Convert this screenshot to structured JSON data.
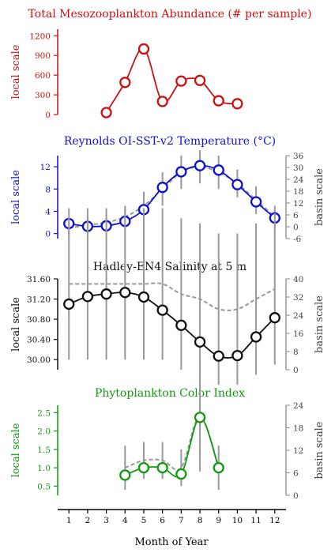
{
  "chart_data": [
    {
      "id": "zoo",
      "type": "line",
      "title": "Total Mesozooplankton Abundance (# per sample)",
      "color": "#cc1111",
      "ylabel": "local scale",
      "right_label": "",
      "ylim": [
        0,
        1300
      ],
      "yticks": [
        0,
        300,
        600,
        900,
        1200
      ],
      "ytick_labels": [
        "0",
        "300",
        "600",
        "900",
        "1200"
      ],
      "right_ylim": null,
      "right_ticks": [],
      "right_tick_labels": [],
      "series": [
        {
          "name": "",
          "x": [
            3,
            4,
            5,
            6,
            7,
            8,
            9,
            10
          ],
          "y": [
            30,
            490,
            1000,
            200,
            510,
            520,
            210,
            165
          ]
        }
      ],
      "basin": null
    },
    {
      "id": "sst",
      "type": "line",
      "title": "Reynolds OI-SST-v2 Temperature (°C)",
      "color": "#1111cc",
      "ylabel": "local scale",
      "right_label": "basin scale",
      "ylim": [
        -0.9,
        14
      ],
      "yticks": [
        0,
        4,
        8,
        12
      ],
      "ytick_labels": [
        "0",
        "4",
        "8",
        "12"
      ],
      "right_ylim": [
        -6,
        36
      ],
      "right_ticks": [
        -6,
        0,
        6,
        12,
        18,
        24,
        30,
        36
      ],
      "right_tick_labels": [
        "-6",
        "0",
        "6",
        "12",
        "18",
        "24",
        "30",
        "36"
      ],
      "series": [
        {
          "name": "",
          "x": [
            1,
            2,
            3,
            4,
            5,
            6,
            7,
            8,
            9,
            10,
            11,
            12
          ],
          "y": [
            1.8,
            1.3,
            1.4,
            2.2,
            4.3,
            8.3,
            11.1,
            12.2,
            11.4,
            8.8,
            5.7,
            2.8
          ]
        }
      ],
      "basin": {
        "x": [
          1,
          2,
          3,
          4,
          5,
          6,
          7,
          8,
          9,
          10,
          11,
          12
        ],
        "y": [
          1,
          1.5,
          2,
          3,
          5,
          8,
          11,
          12,
          11,
          9,
          6,
          3
        ],
        "err": [
          1.5,
          1.5,
          1.5,
          2,
          2.5,
          3,
          3,
          3,
          3,
          2.5,
          2.5,
          2
        ]
      }
    },
    {
      "id": "sal",
      "type": "line",
      "title": "Hadley-EN4 Salinity at 5 m",
      "color": "#111111",
      "ylabel": "local scale",
      "right_label": "basin scale",
      "ylim": [
        29.8,
        31.6
      ],
      "yticks": [
        30.0,
        30.4,
        30.8,
        31.2,
        31.6
      ],
      "ytick_labels": [
        "30.00",
        "30.40",
        "30.80",
        "31.20",
        "31.60"
      ],
      "right_ylim": [
        0,
        40
      ],
      "right_ticks": [
        0,
        8,
        16,
        24,
        32,
        40
      ],
      "right_tick_labels": [
        "0",
        "8",
        "16",
        "24",
        "32",
        "40"
      ],
      "series": [
        {
          "name": "",
          "x": [
            1,
            2,
            3,
            4,
            5,
            6,
            7,
            8,
            9,
            10,
            11,
            12
          ],
          "y": [
            31.1,
            31.25,
            31.3,
            31.33,
            31.24,
            30.98,
            30.68,
            30.35,
            30.07,
            30.08,
            30.45,
            30.83
          ]
        }
      ],
      "basin": {
        "x": [
          1,
          2,
          3,
          4,
          5,
          6,
          7,
          8,
          9,
          10,
          11,
          12
        ],
        "y": [
          31.5,
          31.5,
          31.5,
          31.5,
          31.5,
          31.5,
          31.3,
          31.2,
          31,
          31,
          31.2,
          31.4
        ],
        "err": [
          1.5,
          1.5,
          1.5,
          1.5,
          1.5,
          1.5,
          1.5,
          1.5,
          1.5,
          1.5,
          1.5,
          1.5
        ]
      }
    },
    {
      "id": "chl",
      "type": "line",
      "title": "Phytoplankton Color Index",
      "color": "#119911",
      "ylabel": "local scale",
      "right_label": "basin scale",
      "ylim": [
        0.25,
        2.7
      ],
      "yticks": [
        0.5,
        1.0,
        1.5,
        2.0,
        2.5
      ],
      "ytick_labels": [
        "0.5",
        "1.0",
        "1.5",
        "2.0",
        "2.5"
      ],
      "right_ylim": [
        0,
        24
      ],
      "right_ticks": [
        0,
        6,
        12,
        18,
        24
      ],
      "right_tick_labels": [
        "0",
        "6",
        "12",
        "18",
        "24"
      ],
      "series": [
        {
          "name": "",
          "x": [
            4,
            5,
            6,
            7,
            8,
            9
          ],
          "y": [
            0.8,
            1.0,
            1.0,
            0.83,
            2.37,
            1.0
          ]
        }
      ],
      "basin": {
        "x": [
          4,
          5,
          6,
          7,
          8,
          9
        ],
        "y": [
          1.0,
          1.2,
          1.2,
          1.0,
          2.4,
          1.0
        ],
        "err": [
          0.6,
          0.5,
          0.5,
          0.5,
          1.5,
          0.6
        ]
      }
    }
  ],
  "xaxis": {
    "label": "Month of Year",
    "ticks": [
      1,
      2,
      3,
      4,
      5,
      6,
      7,
      8,
      9,
      10,
      11,
      12
    ],
    "tick_labels": [
      "1",
      "2",
      "3",
      "4",
      "5",
      "6",
      "7",
      "8",
      "9",
      "10",
      "11",
      "12"
    ],
    "xlim": [
      0.4,
      12.6
    ]
  },
  "colors": {
    "basin": "#999999"
  }
}
